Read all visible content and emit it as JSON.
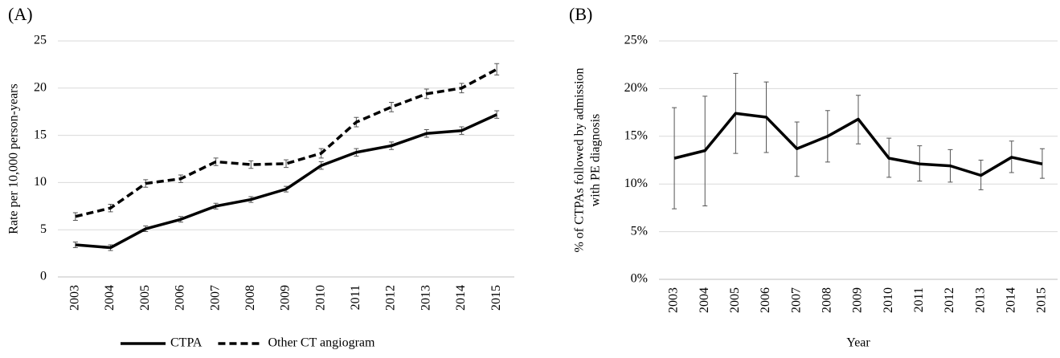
{
  "chart_data": [
    {
      "type": "line",
      "panel": "(A)",
      "ylabel": [
        "Rate per 10,000 person-years"
      ],
      "categories": [
        "2003",
        "2004",
        "2005",
        "2006",
        "2007",
        "2008",
        "2009",
        "2010",
        "2011",
        "2012",
        "2013",
        "2014",
        "2015"
      ],
      "ylim": [
        0,
        25
      ],
      "yticks": [
        0,
        5,
        10,
        15,
        20,
        25
      ],
      "grid": true,
      "legend": "bottom",
      "series": [
        {
          "name": "CTPA",
          "color": "#000000",
          "dash": "solid",
          "values": [
            3.4,
            3.1,
            5.1,
            6.1,
            7.5,
            8.2,
            9.3,
            11.8,
            13.2,
            13.9,
            15.2,
            15.5,
            17.2
          ],
          "lower": [
            3.1,
            2.8,
            4.8,
            5.8,
            7.2,
            7.9,
            9.0,
            11.4,
            12.8,
            13.5,
            14.8,
            15.1,
            16.8
          ],
          "upper": [
            3.7,
            3.4,
            5.4,
            6.4,
            7.8,
            8.5,
            9.6,
            12.2,
            13.6,
            14.3,
            15.6,
            15.9,
            17.6
          ]
        },
        {
          "name": "Other CT angiogram",
          "color": "#000000",
          "dash": "dashed",
          "values": [
            6.4,
            7.3,
            9.9,
            10.4,
            12.2,
            11.9,
            12.0,
            13.1,
            16.4,
            18.0,
            19.4,
            20.0,
            22.0
          ],
          "lower": [
            6.0,
            6.9,
            9.5,
            10.0,
            11.8,
            11.5,
            11.6,
            12.6,
            15.9,
            17.5,
            18.9,
            19.5,
            21.4
          ],
          "upper": [
            6.8,
            7.7,
            10.3,
            10.8,
            12.6,
            12.3,
            12.4,
            13.6,
            16.9,
            18.5,
            19.9,
            20.5,
            22.6
          ]
        }
      ]
    },
    {
      "type": "line",
      "panel": "(B)",
      "ylabel": [
        "% of CTPAs followed by admission",
        "with PE diagnosis"
      ],
      "xlabel": "Year",
      "categories": [
        "2003",
        "2004",
        "2005",
        "2006",
        "2007",
        "2008",
        "2009",
        "2010",
        "2011",
        "2012",
        "2013",
        "2014",
        "2015"
      ],
      "ylim": [
        0,
        25
      ],
      "yticks": [
        {
          "value": 0,
          "label": "0%"
        },
        {
          "value": 5,
          "label": "5%"
        },
        {
          "value": 10,
          "label": "10%"
        },
        {
          "value": 15,
          "label": "15%"
        },
        {
          "value": 20,
          "label": "20%"
        },
        {
          "value": 25,
          "label": "25%"
        }
      ],
      "grid": true,
      "series": [
        {
          "color": "#000000",
          "dash": "solid",
          "values": [
            12.7,
            13.5,
            17.4,
            17.0,
            13.7,
            15.0,
            16.8,
            12.7,
            12.1,
            11.9,
            10.9,
            12.8,
            12.1
          ],
          "lower": [
            7.4,
            7.7,
            13.2,
            13.3,
            10.8,
            12.3,
            14.2,
            10.7,
            10.3,
            10.2,
            9.4,
            11.2,
            10.6
          ],
          "upper": [
            18.0,
            19.2,
            21.6,
            20.7,
            16.5,
            17.7,
            19.3,
            14.8,
            14.0,
            13.6,
            12.5,
            14.5,
            13.7
          ]
        }
      ]
    }
  ]
}
